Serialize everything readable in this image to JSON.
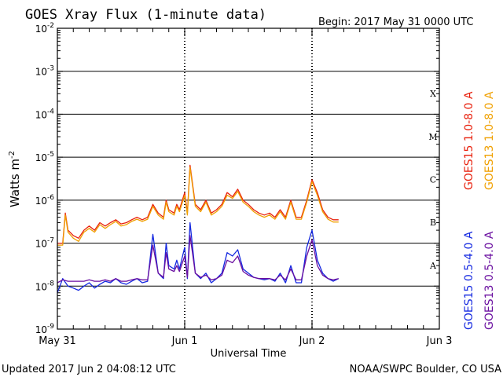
{
  "header": {
    "title": "GOES Xray Flux (1-minute data)",
    "begin": "Begin:  2017 May 31 0000 UTC"
  },
  "footer": {
    "updated": "Updated 2017 Jun  2 04:08:12 UTC",
    "credit": "NOAA/SWPC Boulder, CO USA"
  },
  "chart_data": {
    "type": "line",
    "title": "GOES Xray Flux (1-minute data)",
    "xlabel": "Universal Time",
    "ylabel": "Watts m",
    "ylabel_sup": "-2",
    "y_scale": "log",
    "ylim": [
      1e-09,
      0.01
    ],
    "xlim": [
      0,
      72
    ],
    "x_ticks": [
      {
        "label": "May 31",
        "hour": 0
      },
      {
        "label": "Jun 1",
        "hour": 24
      },
      {
        "label": "Jun 2",
        "hour": 48
      },
      {
        "label": "Jun 3",
        "hour": 72
      }
    ],
    "y_ticks": [
      {
        "base": "10",
        "exp": "-9",
        "value": 1e-09
      },
      {
        "base": "10",
        "exp": "-8",
        "value": 1e-08
      },
      {
        "base": "10",
        "exp": "-7",
        "value": 1e-07
      },
      {
        "base": "10",
        "exp": "-6",
        "value": 1e-06
      },
      {
        "base": "10",
        "exp": "-5",
        "value": 1e-05
      },
      {
        "base": "10",
        "exp": "-4",
        "value": 0.0001
      },
      {
        "base": "10",
        "exp": "-3",
        "value": 0.001
      },
      {
        "base": "10",
        "exp": "-2",
        "value": 0.01
      }
    ],
    "flare_classes": [
      {
        "label": "X",
        "value": 0.0001
      },
      {
        "label": "M",
        "value": 1e-05
      },
      {
        "label": "C",
        "value": 1e-06
      },
      {
        "label": "B",
        "value": 1e-07
      },
      {
        "label": "A",
        "value": 1e-08
      }
    ],
    "grid": true,
    "legend": "right",
    "series": [
      {
        "name": "GOES15 1.0-8.0 A",
        "color": "#e8200c",
        "x": [
          0,
          1,
          1.5,
          2,
          3,
          4,
          5,
          6,
          7,
          8,
          9,
          10,
          11,
          12,
          13,
          14,
          15,
          16,
          17,
          18,
          19,
          20,
          20.5,
          21,
          22,
          22.5,
          23,
          24,
          24.5,
          25,
          26,
          27,
          28,
          29,
          30,
          31,
          32,
          33,
          34,
          35,
          36,
          37,
          38,
          39,
          40,
          41,
          42,
          43,
          44,
          45,
          46,
          47,
          48,
          49,
          50,
          51,
          52,
          53
        ],
        "y": [
          1e-07,
          1e-07,
          5e-07,
          2e-07,
          1.5e-07,
          1.3e-07,
          2e-07,
          2.5e-07,
          2e-07,
          3e-07,
          2.5e-07,
          3e-07,
          3.5e-07,
          2.8e-07,
          3e-07,
          3.5e-07,
          4e-07,
          3.5e-07,
          4e-07,
          8e-07,
          5e-07,
          4e-07,
          1e-06,
          6e-07,
          5e-07,
          8e-07,
          6e-07,
          1.5e-06,
          5e-07,
          6.5e-06,
          8e-07,
          6e-07,
          1e-06,
          5e-07,
          6e-07,
          8e-07,
          1.5e-06,
          1.2e-06,
          1.8e-06,
          1e-06,
          8e-07,
          6e-07,
          5e-07,
          4.5e-07,
          5e-07,
          4e-07,
          6e-07,
          4e-07,
          1e-06,
          4e-07,
          4e-07,
          1e-06,
          3e-06,
          1.5e-06,
          6e-07,
          4e-07,
          3.5e-07,
          3.5e-07
        ]
      },
      {
        "name": "GOES13 1.0-8.0 A",
        "color": "#f0a000",
        "x": [
          0,
          1,
          1.5,
          2,
          3,
          4,
          5,
          6,
          7,
          8,
          9,
          10,
          11,
          12,
          13,
          14,
          15,
          16,
          17,
          18,
          19,
          20,
          20.5,
          21,
          22,
          22.5,
          23,
          24,
          24.5,
          25,
          26,
          27,
          28,
          29,
          30,
          31,
          32,
          33,
          34,
          35,
          36,
          37,
          38,
          39,
          40,
          41,
          42,
          43,
          44,
          45,
          46,
          47,
          48,
          49,
          50,
          51,
          52,
          53
        ],
        "y": [
          9e-08,
          9e-08,
          4.5e-07,
          1.8e-07,
          1.3e-07,
          1.1e-07,
          1.8e-07,
          2.2e-07,
          1.8e-07,
          2.7e-07,
          2.2e-07,
          2.7e-07,
          3.2e-07,
          2.5e-07,
          2.7e-07,
          3.2e-07,
          3.6e-07,
          3.2e-07,
          3.6e-07,
          7.2e-07,
          4.5e-07,
          3.6e-07,
          9e-07,
          5.4e-07,
          4.5e-07,
          7.2e-07,
          5.4e-07,
          1.3e-06,
          4.5e-07,
          5.8e-06,
          7.2e-07,
          5.4e-07,
          9e-07,
          4.5e-07,
          5.4e-07,
          7.2e-07,
          1.3e-06,
          1.1e-06,
          1.6e-06,
          9e-07,
          7.2e-07,
          5.4e-07,
          4.5e-07,
          4e-07,
          4.5e-07,
          3.6e-07,
          5.4e-07,
          3.6e-07,
          9e-07,
          3.6e-07,
          3.6e-07,
          9e-07,
          2.7e-06,
          1.3e-06,
          5.4e-07,
          3.6e-07,
          3.1e-07,
          3.1e-07
        ]
      },
      {
        "name": "GOES15 0.5-4.0 A",
        "color": "#1428e0",
        "x": [
          0,
          1,
          2,
          3,
          4,
          5,
          6,
          7,
          8,
          9,
          10,
          11,
          12,
          13,
          14,
          15,
          16,
          17,
          18,
          19,
          20,
          20.5,
          21,
          22,
          22.5,
          23,
          24,
          24.5,
          25,
          26,
          27,
          28,
          29,
          30,
          31,
          32,
          33,
          34,
          35,
          36,
          37,
          38,
          39,
          40,
          41,
          42,
          43,
          44,
          45,
          46,
          47,
          48,
          49,
          50,
          51,
          52,
          53
        ],
        "y": [
          7e-09,
          1.5e-08,
          1e-08,
          9e-09,
          8e-09,
          1e-08,
          1.2e-08,
          9e-09,
          1.1e-08,
          1.3e-08,
          1.2e-08,
          1.5e-08,
          1.2e-08,
          1.1e-08,
          1.3e-08,
          1.5e-08,
          1.2e-08,
          1.3e-08,
          1.6e-07,
          2e-08,
          1.5e-08,
          1e-07,
          3e-08,
          2.5e-08,
          4e-08,
          2.5e-08,
          8e-08,
          1.5e-08,
          3e-07,
          2e-08,
          1.5e-08,
          2e-08,
          1.2e-08,
          1.5e-08,
          2e-08,
          6e-08,
          5e-08,
          7e-08,
          2.5e-08,
          2e-08,
          1.6e-08,
          1.5e-08,
          1.4e-08,
          1.5e-08,
          1.3e-08,
          2e-08,
          1.2e-08,
          3e-08,
          1.2e-08,
          1.2e-08,
          8e-08,
          2e-07,
          4e-08,
          2e-08,
          1.5e-08,
          1.3e-08,
          1.5e-08
        ]
      },
      {
        "name": "GOES13 0.5-4.0 A",
        "color": "#6a0fa0",
        "x": [
          0,
          1,
          2,
          3,
          4,
          5,
          6,
          7,
          8,
          9,
          10,
          11,
          12,
          13,
          14,
          15,
          16,
          17,
          18,
          19,
          20,
          20.5,
          21,
          22,
          22.5,
          23,
          24,
          24.5,
          25,
          26,
          27,
          28,
          29,
          30,
          31,
          32,
          33,
          34,
          35,
          36,
          37,
          38,
          39,
          40,
          41,
          42,
          43,
          44,
          45,
          46,
          47,
          48,
          49,
          50,
          51,
          52,
          53
        ],
        "y": [
          1.2e-08,
          1.4e-08,
          1.3e-08,
          1.3e-08,
          1.3e-08,
          1.3e-08,
          1.4e-08,
          1.3e-08,
          1.3e-08,
          1.4e-08,
          1.3e-08,
          1.5e-08,
          1.3e-08,
          1.3e-08,
          1.4e-08,
          1.5e-08,
          1.4e-08,
          1.4e-08,
          9e-08,
          2e-08,
          1.6e-08,
          6e-08,
          2.5e-08,
          2.2e-08,
          3e-08,
          2.2e-08,
          5e-08,
          1.6e-08,
          1.5e-07,
          2e-08,
          1.6e-08,
          1.8e-08,
          1.4e-08,
          1.5e-08,
          1.8e-08,
          4e-08,
          3.5e-08,
          5e-08,
          2.2e-08,
          1.8e-08,
          1.6e-08,
          1.5e-08,
          1.5e-08,
          1.5e-08,
          1.4e-08,
          1.8e-08,
          1.4e-08,
          2.5e-08,
          1.4e-08,
          1.4e-08,
          5e-08,
          1.2e-07,
          3e-08,
          1.8e-08,
          1.5e-08,
          1.4e-08,
          1.5e-08
        ]
      }
    ]
  }
}
